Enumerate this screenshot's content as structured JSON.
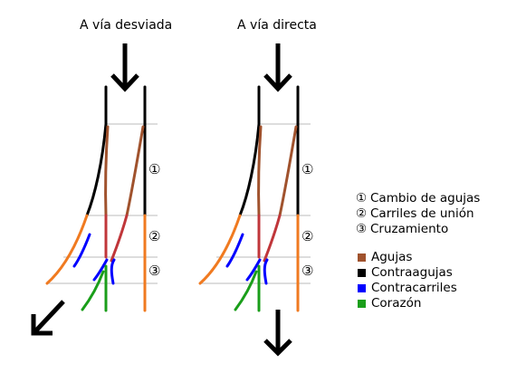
{
  "diagrams": [
    {
      "title": "A vía desviada",
      "zone_marks": [
        "①",
        "②",
        "③"
      ]
    },
    {
      "title": "A vía directa",
      "zone_marks": [
        "①",
        "②",
        "③"
      ]
    }
  ],
  "zones_legend": [
    {
      "num": "①",
      "label": "Cambio de agujas"
    },
    {
      "num": "②",
      "label": "Carriles de unión"
    },
    {
      "num": "③",
      "label": "Cruzamiento"
    }
  ],
  "parts_legend": [
    {
      "label": "Agujas",
      "color": "#a0522d"
    },
    {
      "label": "Contraagujas",
      "color": "#000000"
    },
    {
      "label": "Contracarriles",
      "color": "#0000ff"
    },
    {
      "label": "Corazón",
      "color": "#1a9e1a"
    }
  ],
  "colors": {
    "stock_rail_diverging": "#f07a20",
    "closure_rail": "#c0363a",
    "zone_lines": "#bbbbbb"
  },
  "icons": [
    "arrow-down-icon",
    "arrow-down-left-icon"
  ]
}
